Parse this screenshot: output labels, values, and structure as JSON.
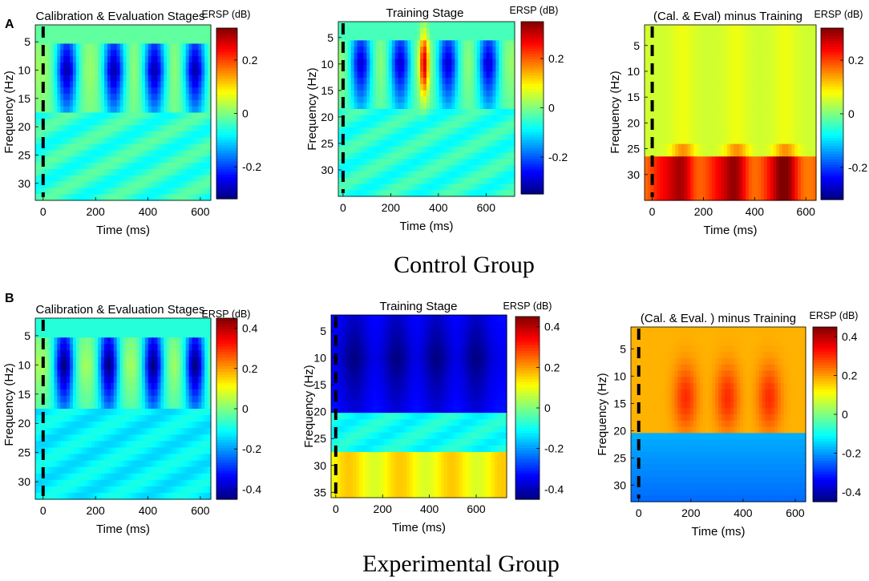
{
  "figure": {
    "panel_labels": [
      "A",
      "B"
    ],
    "group_labels": [
      "Control Group",
      "Experimental Group"
    ]
  },
  "chart_data": [
    {
      "type": "heatmap",
      "panel": "A",
      "group": "Control Group",
      "title": "Calibration & Evaluation Stages",
      "xlabel": "Time (ms)",
      "ylabel": "Frequency (Hz)",
      "xlim": [
        -30,
        640
      ],
      "ylim": [
        2,
        33
      ],
      "xticks": [
        "0",
        "200",
        "400",
        "600"
      ],
      "xtick_values": [
        0,
        200,
        400,
        600
      ],
      "yticks": [
        "5",
        "10",
        "15",
        "20",
        "25",
        "30"
      ],
      "ytick_values": [
        5,
        10,
        15,
        20,
        25,
        30
      ],
      "colorbar_label": "ERSP (dB)",
      "clim": [
        -0.32,
        0.32
      ],
      "colorbar_ticks": [
        "0.2",
        "0",
        "-0.2"
      ],
      "colorbar_tick_values": [
        0.2,
        0,
        -0.2
      ],
      "stimulus_onset_ms": 0,
      "pattern": {
        "base": -0.02,
        "blob_centers_ms": [
          90,
          270,
          425,
          580
        ],
        "blob_width_ms": 42,
        "blob_amp": -0.28,
        "low_freq": 5,
        "high_freq": 18,
        "offset_hz": 10,
        "gap_amp": 0.04,
        "high_freq_value": -0.05
      }
    },
    {
      "type": "heatmap",
      "panel": "A",
      "group": "Control Group",
      "title": "Training Stage",
      "xlabel": "Time (ms)",
      "ylabel": "Frequency (Hz)",
      "xlim": [
        -20,
        720
      ],
      "ylim": [
        2,
        35
      ],
      "xticks": [
        "0",
        "200",
        "400",
        "600"
      ],
      "xtick_values": [
        0,
        200,
        400,
        600
      ],
      "yticks": [
        "5",
        "10",
        "15",
        "20",
        "25",
        "30"
      ],
      "ytick_values": [
        5,
        10,
        15,
        20,
        25,
        30
      ],
      "colorbar_label": "ERSP (dB)",
      "clim": [
        -0.35,
        0.35
      ],
      "colorbar_ticks": [
        "0.2",
        "0",
        "-0.2"
      ],
      "colorbar_tick_values": [
        0.2,
        0,
        -0.2
      ],
      "stimulus_onset_ms": 0,
      "pattern": {
        "base": -0.04,
        "blob_centers_ms": [
          75,
          240,
          440,
          610
        ],
        "blob_width_ms": 45,
        "blob_amp": -0.26,
        "low_freq": 5,
        "high_freq": 18,
        "offset_hz": 10,
        "gap_amp": 0.06,
        "high_freq_value": -0.06,
        "hot_center_ms": 340,
        "hot_amp": 0.28
      }
    },
    {
      "type": "heatmap",
      "panel": "A",
      "group": "Control Group",
      "title": "(Cal. & Eval) minus Training",
      "xlabel": "Time (ms)",
      "ylabel": "Frequency (Hz)",
      "xlim": [
        -30,
        640
      ],
      "ylim": [
        1,
        35
      ],
      "xticks": [
        "0",
        "200",
        "400",
        "600"
      ],
      "xtick_values": [
        0,
        200,
        400,
        600
      ],
      "yticks": [
        "5",
        "10",
        "15",
        "20",
        "25",
        "30"
      ],
      "ytick_values": [
        5,
        10,
        15,
        20,
        25,
        30
      ],
      "colorbar_label": "ERSP (dB)",
      "clim": [
        -0.32,
        0.32
      ],
      "colorbar_ticks": [
        "0.2",
        "0",
        "-0.2"
      ],
      "colorbar_tick_values": [
        0.2,
        0,
        -0.2
      ],
      "stimulus_onset_ms": 0,
      "pattern": {
        "base": 0.05,
        "high_band_from_hz": 26,
        "high_band_value": 0.2,
        "hot_centers_ms": [
          120,
          330,
          520
        ],
        "hot_amp": 0.1
      }
    },
    {
      "type": "heatmap",
      "panel": "B",
      "group": "Experimental Group",
      "title": "Calibration & Evaluation Stages",
      "xlabel": "Time (ms)",
      "ylabel": "Frequency (Hz)",
      "xlim": [
        -30,
        640
      ],
      "ylim": [
        2,
        33
      ],
      "xticks": [
        "0",
        "200",
        "400",
        "600"
      ],
      "xtick_values": [
        0,
        200,
        400,
        600
      ],
      "yticks": [
        "5",
        "10",
        "15",
        "20",
        "25",
        "30"
      ],
      "ytick_values": [
        5,
        10,
        15,
        20,
        25,
        30
      ],
      "colorbar_label": "ERSP (dB)",
      "clim": [
        -0.45,
        0.45
      ],
      "colorbar_ticks": [
        "0.4",
        "0.2",
        "0",
        "-0.2",
        "-0.4"
      ],
      "colorbar_tick_values": [
        0.4,
        0.2,
        0,
        -0.2,
        -0.4
      ],
      "stimulus_onset_ms": 0,
      "pattern": {
        "base": -0.08,
        "blob_centers_ms": [
          80,
          250,
          420,
          580
        ],
        "blob_width_ms": 40,
        "blob_amp": -0.38,
        "low_freq": 5,
        "high_freq": 17,
        "offset_hz": 10,
        "gap_amp": 0.12,
        "high_freq_value": -0.12
      }
    },
    {
      "type": "heatmap",
      "panel": "B",
      "group": "Experimental Group",
      "title": "Training Stage",
      "xlabel": "Time (ms)",
      "ylabel": "Frequency (Hz)",
      "xlim": [
        -20,
        730
      ],
      "ylim": [
        2,
        36
      ],
      "xticks": [
        "0",
        "200",
        "400",
        "600"
      ],
      "xtick_values": [
        0,
        200,
        400,
        600
      ],
      "yticks": [
        "5",
        "10",
        "15",
        "20",
        "25",
        "30",
        "35"
      ],
      "ytick_values": [
        5,
        10,
        15,
        20,
        25,
        30,
        35
      ],
      "colorbar_label": "ERSP (dB)",
      "clim": [
        -0.45,
        0.45
      ],
      "colorbar_ticks": [
        "0.4",
        "0.2",
        "0",
        "-0.2",
        "-0.4"
      ],
      "colorbar_tick_values": [
        0.4,
        0.2,
        0,
        -0.2,
        -0.4
      ],
      "stimulus_onset_ms": 0,
      "pattern": {
        "base": -0.3,
        "blob_centers_ms": [
          80,
          260,
          430,
          600
        ],
        "blob_width_ms": 55,
        "blob_amp": -0.15,
        "low_freq": 2,
        "high_freq": 20,
        "offset_hz": 10,
        "gap_amp": -0.05,
        "high_freq_value": -0.1,
        "high_band_from_hz": 28,
        "high_band_value": 0.12
      }
    },
    {
      "type": "heatmap",
      "panel": "B",
      "group": "Experimental Group",
      "title": "(Cal. & Eval. ) minus Training",
      "xlabel": "Time (ms)",
      "ylabel": "Frequency (Hz)",
      "xlim": [
        -30,
        640
      ],
      "ylim": [
        1,
        33
      ],
      "xticks": [
        "0",
        "200",
        "400",
        "600"
      ],
      "xtick_values": [
        0,
        200,
        400,
        600
      ],
      "yticks": [
        "5",
        "10",
        "15",
        "20",
        "25",
        "30"
      ],
      "ytick_values": [
        5,
        10,
        15,
        20,
        25,
        30
      ],
      "colorbar_label": "ERSP (dB)",
      "clim": [
        -0.45,
        0.45
      ],
      "colorbar_ticks": [
        "0.4",
        "0.2",
        "0",
        "-0.2",
        "-0.4"
      ],
      "colorbar_tick_values": [
        0.4,
        0.2,
        0,
        -0.2,
        -0.4
      ],
      "stimulus_onset_ms": 0,
      "pattern": {
        "base": 0.18,
        "hot_centers_ms": [
          180,
          340,
          500
        ],
        "hot_amp": 0.12,
        "low_freq": 8,
        "high_freq": 20,
        "cool_band_from_hz": 20,
        "cool_band_value": -0.18
      }
    }
  ]
}
